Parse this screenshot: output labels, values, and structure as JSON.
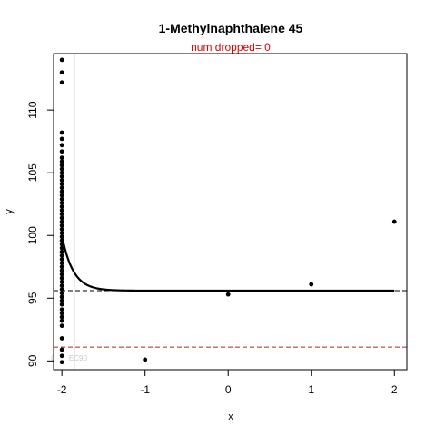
{
  "chart_data": {
    "type": "scatter",
    "title": "1-Methylnaphthalene 45",
    "subtitle": "num dropped= 0",
    "xlabel": "x",
    "ylabel": "y",
    "xlim": [
      -2.1,
      2.15
    ],
    "ylim": [
      89.3,
      114.5
    ],
    "xticks": [
      -2,
      -1,
      0,
      1,
      2
    ],
    "yticks": [
      90,
      95,
      100,
      105,
      110
    ],
    "grid": false,
    "marker_text": "0",
    "ec_label": "EC90",
    "colors": {
      "points": "#000000",
      "fit_line": "#000000",
      "baseline": "#000000",
      "ec_line": "#b22222",
      "subtitle": "#e00000",
      "vline": "#c8c8c8",
      "faint_text": "#c8c8c8"
    },
    "points_x_neg2": [
      114.0,
      113.0,
      112.2,
      108.2,
      107.7,
      107.2,
      106.7,
      106.2,
      105.9,
      105.6,
      105.3,
      105.0,
      104.7,
      104.4,
      104.1,
      103.8,
      103.5,
      103.2,
      102.9,
      102.6,
      102.3,
      102.0,
      101.7,
      101.4,
      101.1,
      100.8,
      100.5,
      100.2,
      99.9,
      99.6,
      99.3,
      99.0,
      98.7,
      98.4,
      98.1,
      97.8,
      97.5,
      97.2,
      96.9,
      96.6,
      96.3,
      96.0,
      95.7,
      95.4,
      95.1,
      94.8,
      94.5,
      94.1,
      93.8,
      93.5,
      93.2,
      92.8,
      91.8,
      90.9,
      90.4,
      89.9
    ],
    "points_other": [
      {
        "x": -1,
        "y": 90.1
      },
      {
        "x": 0,
        "y": 95.3
      },
      {
        "x": 1,
        "y": 96.1
      },
      {
        "x": 2,
        "y": 101.1
      }
    ],
    "fit": {
      "x_start": -2,
      "x_end": 2,
      "top": 100.0,
      "bottom": 95.6,
      "rate": 7.5
    },
    "baseline_y": 95.6,
    "ec_y": 91.1,
    "vline_x": -1.85
  }
}
